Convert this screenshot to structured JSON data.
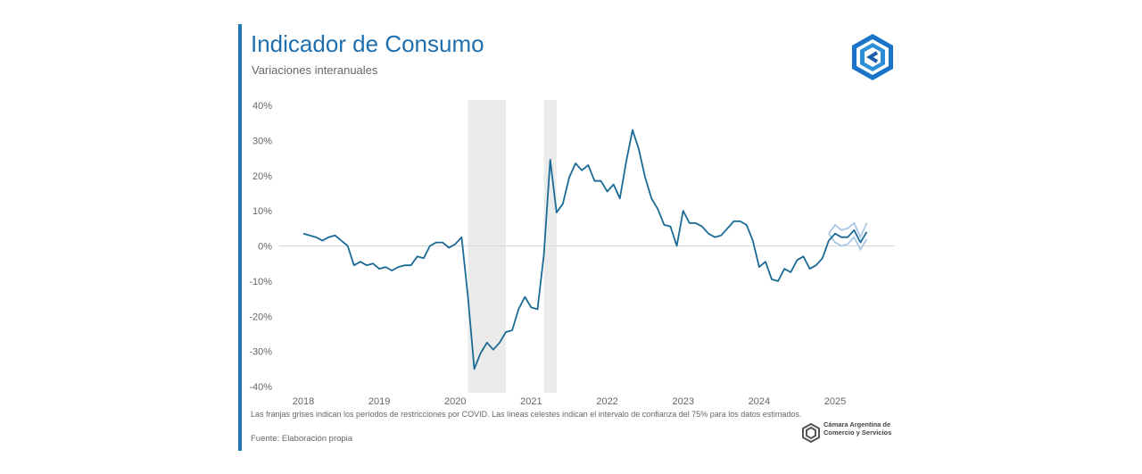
{
  "header": {
    "title": "Indicador de Consumo",
    "subtitle": "Variaciones interanuales"
  },
  "footer": {
    "note": "Las franjas grises indican los períodos de restricciones por COVID. Las líneas celestes indican el intervalo de confianza del 75% para los datos estimados.",
    "source": "Fuente: Elaboración propia",
    "org_name": "Cámara Argentina de Comercio y Servicios"
  },
  "colors": {
    "accent": "#1f78b4",
    "line": "#1a6a96",
    "confidence": "#a9c8e6",
    "covid_band": "#ebebeb"
  },
  "chart_data": {
    "type": "line",
    "title": "Indicador de Consumo",
    "subtitle": "Variaciones interanuales",
    "x_tick_labels": [
      "2018",
      "2019",
      "2020",
      "2021",
      "2022",
      "2023",
      "2024",
      "2025"
    ],
    "y_tick_labels": [
      "40%",
      "30%",
      "20%",
      "10%",
      "0%",
      "-10%",
      "-20%",
      "-30%",
      "-40%"
    ],
    "ylim": [
      -40,
      40
    ],
    "y_unit": "%",
    "grid": false,
    "zero_line": true,
    "x_start": "2018-01",
    "shaded_periods": [
      {
        "start": "2020-03",
        "end": "2020-09"
      },
      {
        "start": "2021-03",
        "end": "2021-05"
      }
    ],
    "series": [
      {
        "values": [
          3.5,
          3.0,
          2.5,
          1.5,
          2.5,
          3.0,
          1.5,
          0.0,
          -5.5,
          -4.5,
          -5.5,
          -5.0,
          -6.5,
          -6.0,
          -7.0,
          -6.0,
          -5.5,
          -5.5,
          -3.0,
          -3.5,
          0.0,
          1.0,
          1.0,
          -0.5,
          0.5,
          2.5,
          -14.5,
          -35.0,
          -30.5,
          -27.5,
          -29.5,
          -27.5,
          -24.5,
          -24.0,
          -18.0,
          -14.5,
          -17.5,
          -18.0,
          -2.5,
          24.5,
          9.5,
          12.0,
          19.5,
          23.5,
          21.5,
          23.0,
          18.5,
          18.5,
          15.5,
          17.5,
          13.5,
          24.0,
          33.0,
          27.5,
          19.5,
          13.5,
          10.5,
          6.0,
          5.5,
          0.0,
          10.0,
          6.5,
          6.5,
          5.5,
          3.5,
          2.5,
          3.0,
          5.0,
          7.0,
          7.0,
          6.0,
          1.5,
          -6.0,
          -4.5,
          -9.5,
          -10.0,
          -6.5,
          -7.5,
          -4.0,
          -3.0,
          -6.5,
          -5.5,
          -3.5,
          1.5,
          3.5,
          2.5,
          2.5,
          4.5,
          1.0,
          4.0
        ]
      },
      {
        "values": [
          3.5,
          6.0,
          4.5,
          5.0,
          6.5,
          2.5,
          6.5
        ]
      },
      {
        "values": [
          3.5,
          1.0,
          0.0,
          0.5,
          2.5,
          -1.0,
          2.0
        ]
      }
    ]
  }
}
